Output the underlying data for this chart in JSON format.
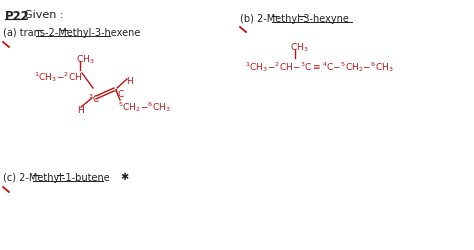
{
  "bg_color": "#ffffff",
  "black": "#222222",
  "red": "#bb1111",
  "title1": "P22",
  "title2": "Given :",
  "label_a": "(a) trans-2-Methyl-3-hexene",
  "label_b": "(b) 2-Methyl-3-hexyne",
  "label_c": "(c) 2-Methyl-1-butene"
}
